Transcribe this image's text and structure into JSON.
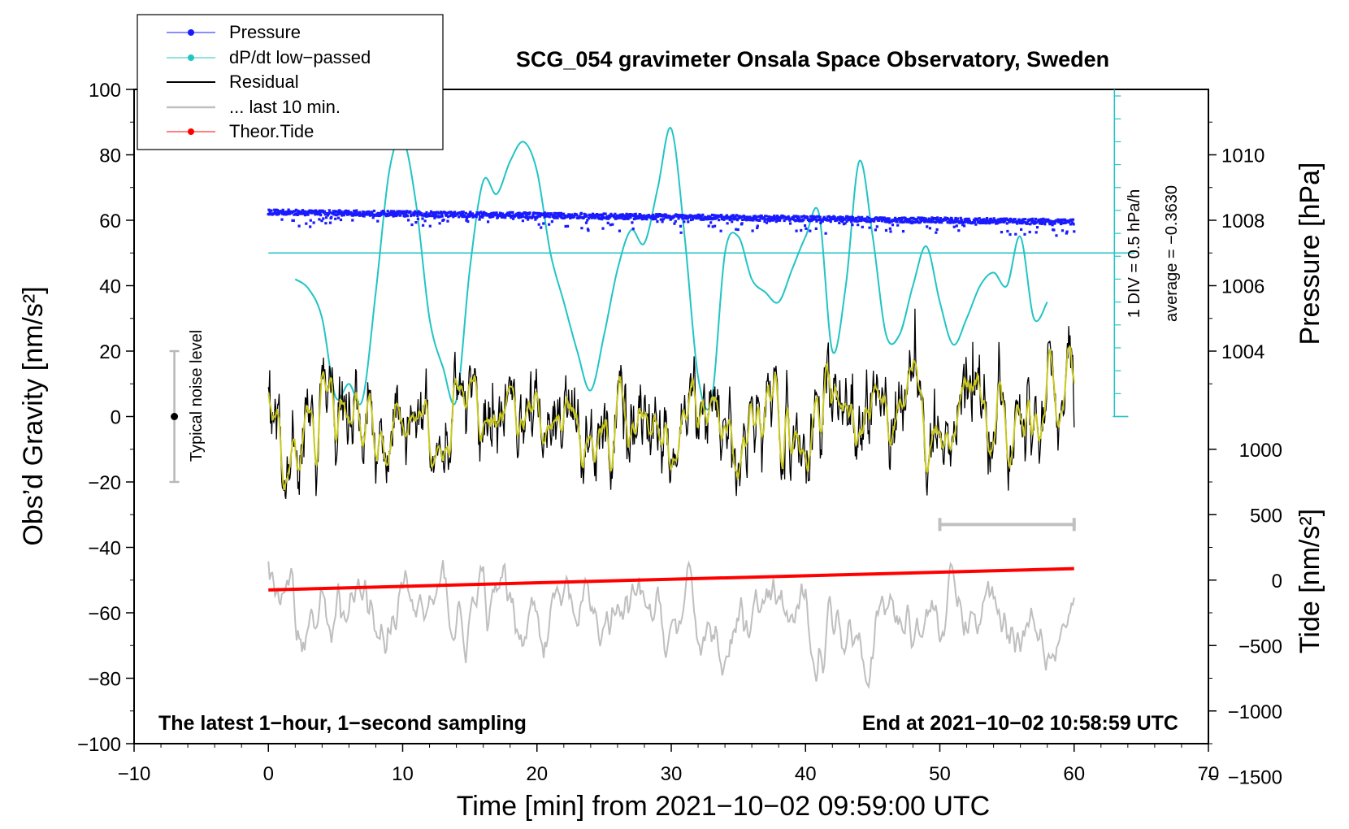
{
  "chart_data": {
    "type": "line",
    "title": "SCG_054 gravimeter Onsala Space Observatory, Sweden",
    "xlabel": "Time [min] from 2021−10−02 09:59:00 UTC",
    "ylabel_left": "Obs’d Gravity [nm/s²]",
    "ylabel_pressure": "Pressure [hPa]",
    "ylabel_tide": "Tide [nm/s²]",
    "xlim": [
      -10,
      70
    ],
    "ylim": [
      -100,
      100
    ],
    "x_ticks": [
      "−10",
      "0",
      "10",
      "20",
      "30",
      "40",
      "50",
      "60",
      "70"
    ],
    "x_tick_values": [
      -10,
      0,
      10,
      20,
      30,
      40,
      50,
      60,
      70
    ],
    "y_ticks": [
      "100",
      "80",
      "60",
      "40",
      "20",
      "0",
      "−20",
      "−40",
      "−60",
      "−80",
      "−100"
    ],
    "y_tick_values": [
      100,
      80,
      60,
      40,
      20,
      0,
      -20,
      -40,
      -60,
      -80,
      -100
    ],
    "pressure_ticks": [
      "1010",
      "1008",
      "1006",
      "1004"
    ],
    "pressure_tick_values": [
      1010,
      1008,
      1006,
      1004
    ],
    "pressure_axis": {
      "value_at_gravity_0": 1002,
      "hpa_per_gravity_unit": 0.1
    },
    "tide_ticks": [
      "1000",
      "500",
      "0",
      "−500",
      "−1000",
      "−1500"
    ],
    "tide_tick_values": [
      1000,
      500,
      0,
      -500,
      -1000,
      -1500
    ],
    "tide_axis": {
      "gravity_at_tide_0": -50,
      "tide_per_gravity_unit": 25
    },
    "legend": [
      {
        "label": "Pressure",
        "color": "#1a1aff",
        "marker": true
      },
      {
        "label": "dP/dt low−passed",
        "color": "#22c4c4",
        "marker": true
      },
      {
        "label": "Residual",
        "color": "#000000",
        "marker": false
      },
      {
        "label": "... last 10 min.",
        "color": "#bfbfbf",
        "marker": false
      },
      {
        "label": "Theor.Tide",
        "color": "#ff0000",
        "marker": true
      }
    ],
    "legend_position": "top-left",
    "annotations": {
      "noise": "Typical noise level",
      "noise_range": [
        -20,
        20
      ],
      "div": "1 DIV = 0.5 hPa/h",
      "average": "average = −0.3630",
      "dpdt_zero_level": 50,
      "dpdt_scale_range": [
        0,
        100
      ],
      "bottom_left": "The latest 1−hour, 1−second sampling",
      "bottom_right": "End at 2021−10−02 10:58:59 UTC",
      "last10_bar_range": [
        50,
        60
      ],
      "last10_bar_level": -33
    },
    "series": [
      {
        "name": "Pressure",
        "x_range": [
          0,
          60
        ],
        "y_start": 62.5,
        "y_end": 59.5
      },
      {
        "name": "dP/dt low−passed",
        "points": [
          [
            2,
            42
          ],
          [
            3,
            39
          ],
          [
            4,
            30
          ],
          [
            5,
            6
          ],
          [
            6,
            10
          ],
          [
            7,
            5
          ],
          [
            8,
            38
          ],
          [
            9,
            75
          ],
          [
            10,
            85
          ],
          [
            11,
            65
          ],
          [
            12,
            30
          ],
          [
            13,
            15
          ],
          [
            14,
            5
          ],
          [
            15,
            45
          ],
          [
            16,
            72
          ],
          [
            17,
            68
          ],
          [
            18,
            78
          ],
          [
            19,
            84
          ],
          [
            20,
            75
          ],
          [
            21,
            50
          ],
          [
            22,
            35
          ],
          [
            23,
            20
          ],
          [
            24,
            8
          ],
          [
            25,
            25
          ],
          [
            26,
            45
          ],
          [
            27,
            57
          ],
          [
            28,
            53
          ],
          [
            29,
            70
          ],
          [
            30,
            88
          ],
          [
            31,
            55
          ],
          [
            32,
            12
          ],
          [
            33,
            5
          ],
          [
            34,
            50
          ],
          [
            35,
            55
          ],
          [
            36,
            42
          ],
          [
            37,
            38
          ],
          [
            38,
            35
          ],
          [
            39,
            45
          ],
          [
            40,
            55
          ],
          [
            41,
            62
          ],
          [
            42,
            20
          ],
          [
            43,
            40
          ],
          [
            44,
            78
          ],
          [
            45,
            55
          ],
          [
            46,
            25
          ],
          [
            47,
            25
          ],
          [
            48,
            40
          ],
          [
            49,
            52
          ],
          [
            50,
            35
          ],
          [
            51,
            22
          ],
          [
            52,
            30
          ],
          [
            53,
            40
          ],
          [
            54,
            44
          ],
          [
            55,
            40
          ],
          [
            56,
            55
          ],
          [
            57,
            30
          ],
          [
            58,
            35
          ]
        ]
      },
      {
        "name": "Residual",
        "x_range": [
          0,
          60
        ],
        "mean": 0,
        "amplitude": 20
      },
      {
        "name": "... last 10 min.",
        "x_range": [
          0,
          60
        ],
        "mean": -62,
        "amplitude": 12
      },
      {
        "name": "Theor.Tide",
        "x_range": [
          0,
          60
        ],
        "y_start": -53,
        "y_end": -46.5
      }
    ]
  }
}
